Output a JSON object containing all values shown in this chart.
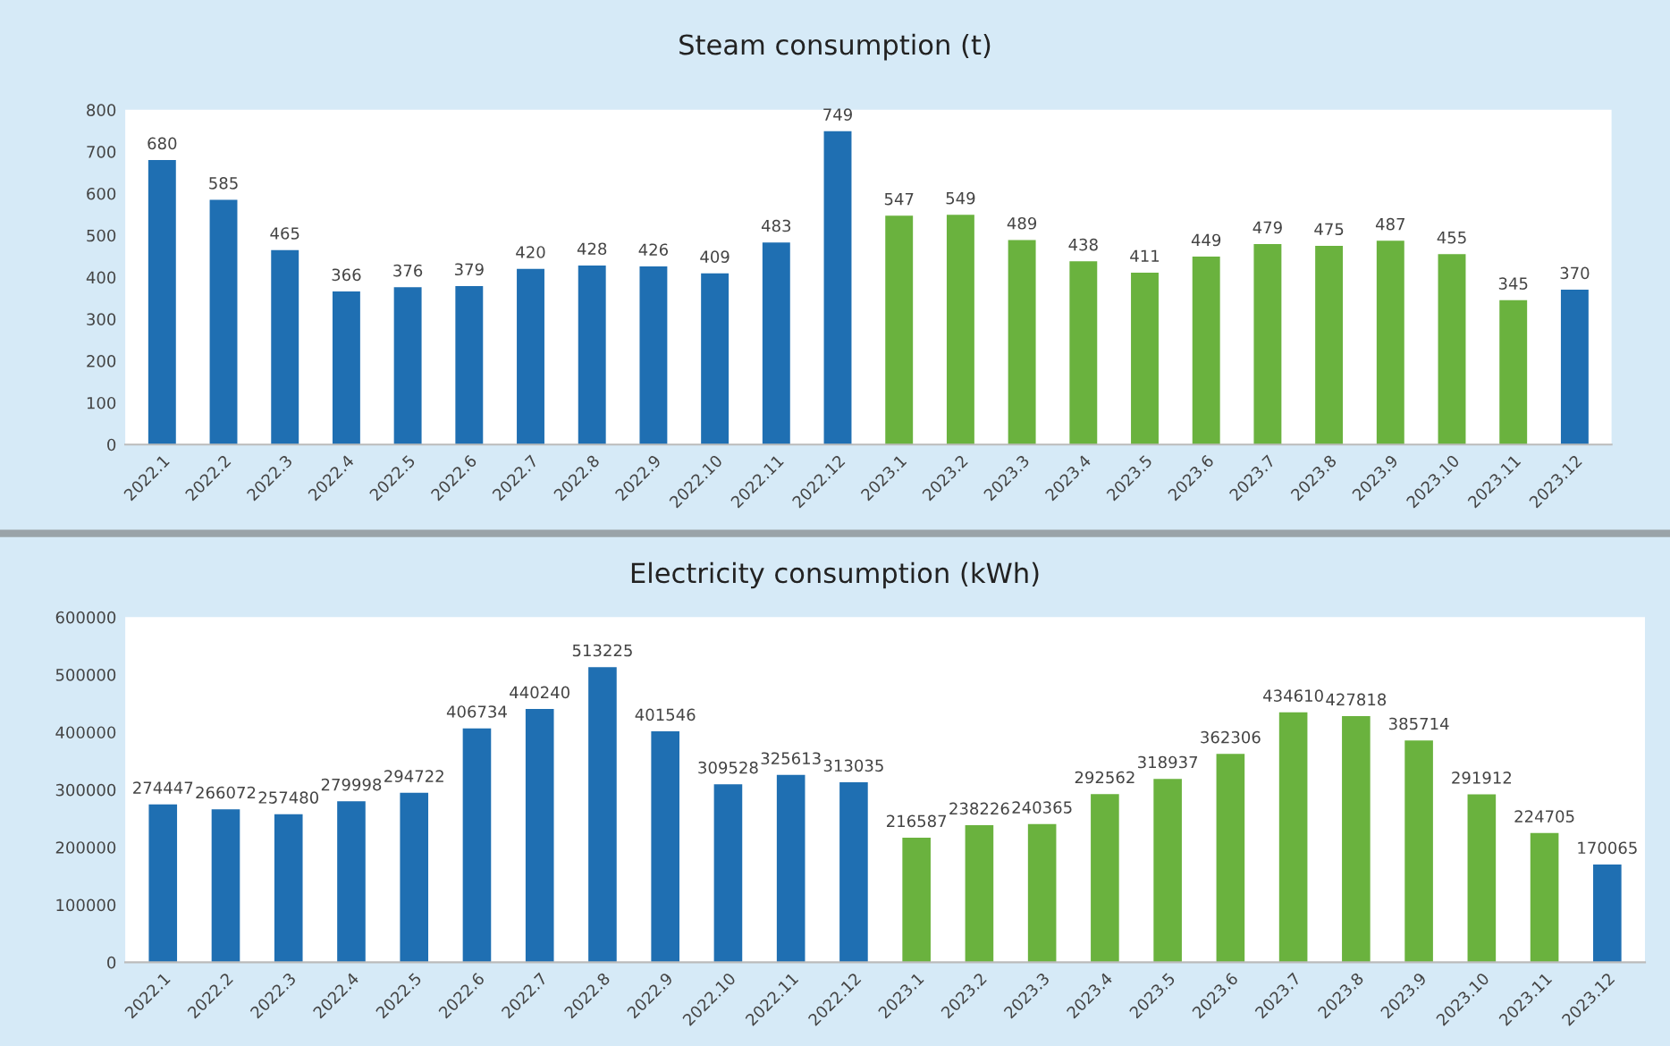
{
  "chart_data": [
    {
      "type": "bar",
      "title": "Steam consumption (t)",
      "categories": [
        "2022.1",
        "2022.2",
        "2022.3",
        "2022.4",
        "2022.5",
        "2022.6",
        "2022.7",
        "2022.8",
        "2022.9",
        "2022.10",
        "2022.11",
        "2022.12",
        "2023.1",
        "2023.2",
        "2023.3",
        "2023.4",
        "2023.5",
        "2023.6",
        "2023.7",
        "2023.8",
        "2023.9",
        "2023.10",
        "2023.11",
        "2023.12"
      ],
      "values": [
        680,
        585,
        465,
        366,
        376,
        379,
        420,
        428,
        426,
        409,
        483,
        749,
        547,
        549,
        489,
        438,
        411,
        449,
        479,
        475,
        487,
        455,
        345,
        370
      ],
      "colors": [
        "#1f6fb2",
        "#1f6fb2",
        "#1f6fb2",
        "#1f6fb2",
        "#1f6fb2",
        "#1f6fb2",
        "#1f6fb2",
        "#1f6fb2",
        "#1f6fb2",
        "#1f6fb2",
        "#1f6fb2",
        "#1f6fb2",
        "#6ab23e",
        "#6ab23e",
        "#6ab23e",
        "#6ab23e",
        "#6ab23e",
        "#6ab23e",
        "#6ab23e",
        "#6ab23e",
        "#6ab23e",
        "#6ab23e",
        "#6ab23e",
        "#1f6fb2"
      ],
      "ylim": [
        0,
        800
      ],
      "yticks": [
        0,
        100,
        200,
        300,
        400,
        500,
        600,
        700,
        800
      ],
      "data_labels": true,
      "grid": false
    },
    {
      "type": "bar",
      "title": "Electricity consumption (kWh)",
      "categories": [
        "2022.1",
        "2022.2",
        "2022.3",
        "2022.4",
        "2022.5",
        "2022.6",
        "2022.7",
        "2022.8",
        "2022.9",
        "2022.10",
        "2022.11",
        "2022.12",
        "2023.1",
        "2023.2",
        "2023.3",
        "2023.4",
        "2023.5",
        "2023.6",
        "2023.7",
        "2023.8",
        "2023.9",
        "2023.10",
        "2023.11",
        "2023.12"
      ],
      "values": [
        274447,
        266072,
        257480,
        279998,
        294722,
        406734,
        440240,
        513225,
        401546,
        309528,
        325613,
        313035,
        216587,
        238226,
        240365,
        292562,
        318937,
        362306,
        434610,
        427818,
        385714,
        291912,
        224705,
        170065
      ],
      "colors": [
        "#1f6fb2",
        "#1f6fb2",
        "#1f6fb2",
        "#1f6fb2",
        "#1f6fb2",
        "#1f6fb2",
        "#1f6fb2",
        "#1f6fb2",
        "#1f6fb2",
        "#1f6fb2",
        "#1f6fb2",
        "#1f6fb2",
        "#6ab23e",
        "#6ab23e",
        "#6ab23e",
        "#6ab23e",
        "#6ab23e",
        "#6ab23e",
        "#6ab23e",
        "#6ab23e",
        "#6ab23e",
        "#6ab23e",
        "#6ab23e",
        "#1f6fb2"
      ],
      "ylim": [
        0,
        600000
      ],
      "yticks": [
        0,
        100000,
        200000,
        300000,
        400000,
        500000,
        600000
      ],
      "data_labels": true,
      "grid": false
    }
  ]
}
